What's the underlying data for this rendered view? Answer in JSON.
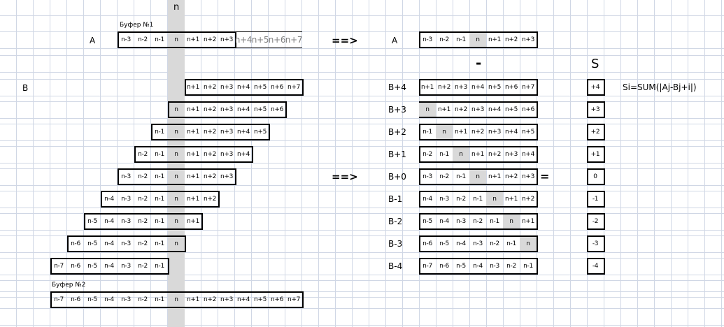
{
  "header": {
    "column_marker": "n"
  },
  "left": {
    "buffer1_label": "Буфер №1",
    "a_label": "A",
    "a_cells": [
      "n-3",
      "n-2",
      "n-1",
      "n",
      "n+1",
      "n+2",
      "n+3"
    ],
    "a_overflow": [
      "n+4",
      "n+5",
      "n+6",
      "n+7"
    ],
    "b_label": "B",
    "b_rows": [
      [
        "n+1",
        "n+2",
        "n+3",
        "n+4",
        "n+5",
        "n+6",
        "n+7"
      ],
      [
        "n",
        "n+1",
        "n+2",
        "n+3",
        "n+4",
        "n+5",
        "n+6"
      ],
      [
        "n-1",
        "n",
        "n+1",
        "n+2",
        "n+3",
        "n+4",
        "n+5"
      ],
      [
        "n-2",
        "n-1",
        "n",
        "n+1",
        "n+2",
        "n+3",
        "n+4"
      ],
      [
        "n-3",
        "n-2",
        "n-1",
        "n",
        "n+1",
        "n+2",
        "n+3"
      ],
      [
        "n-4",
        "n-3",
        "n-2",
        "n-1",
        "n",
        "n+1",
        "n+2"
      ],
      [
        "n-5",
        "n-4",
        "n-3",
        "n-2",
        "n-1",
        "n",
        "n+1"
      ],
      [
        "n-6",
        "n-5",
        "n-4",
        "n-3",
        "n-2",
        "n-1",
        "n"
      ],
      [
        "n-7",
        "n-6",
        "n-5",
        "n-4",
        "n-3",
        "n-2",
        "n-1"
      ]
    ],
    "buffer2_label": "Буфер №2",
    "buffer2_cells": [
      "n-7",
      "n-6",
      "n-5",
      "n-4",
      "n-3",
      "n-2",
      "n-1",
      "n",
      "n+1",
      "n+2",
      "n+3",
      "n+4",
      "n+5",
      "n+6",
      "n+7"
    ]
  },
  "arrows": {
    "top": "==>",
    "middle": "==>"
  },
  "right": {
    "a_label": "A",
    "a_cells": [
      "n-3",
      "n-2",
      "n-1",
      "n",
      "n+1",
      "n+2",
      "n+3"
    ],
    "minus": "-",
    "s_header": "S",
    "equals": "=",
    "formula": "Si=SUM(|Aj-Bj+i|)",
    "rows": [
      {
        "label": "B+4",
        "s": "+4"
      },
      {
        "label": "B+3",
        "s": "+3"
      },
      {
        "label": "B+2",
        "s": "+2"
      },
      {
        "label": "B+1",
        "s": "+1"
      },
      {
        "label": "B+0",
        "s": "0"
      },
      {
        "label": "B-1",
        "s": "-1"
      },
      {
        "label": "B-2",
        "s": "-2"
      },
      {
        "label": "B-3",
        "s": "-3"
      },
      {
        "label": "B-4",
        "s": "-4"
      }
    ]
  },
  "colors": {
    "grid": "#d0d7e5",
    "highlight": "#d9d9d9",
    "overflow_text": "#7f7f7f"
  }
}
